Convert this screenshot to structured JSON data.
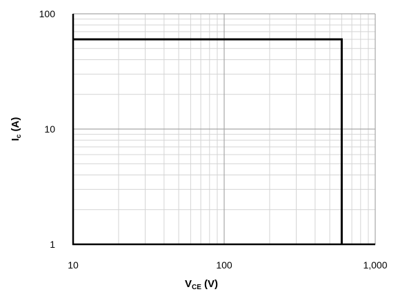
{
  "chart_data": {
    "type": "line",
    "x_scale": "log",
    "y_scale": "log",
    "xlim": [
      10,
      1000
    ],
    "ylim": [
      1,
      100
    ],
    "xlabel": {
      "main": "V",
      "sub": "CE",
      "unit": " (V)"
    },
    "ylabel": {
      "main": "I",
      "sub": "c",
      "unit": " (A)"
    },
    "x_ticks": [
      {
        "value": 10,
        "label": "10"
      },
      {
        "value": 100,
        "label": "100"
      },
      {
        "value": 1000,
        "label": "1,000"
      }
    ],
    "y_ticks": [
      {
        "value": 1,
        "label": "1"
      },
      {
        "value": 10,
        "label": "10"
      },
      {
        "value": 100,
        "label": "100"
      }
    ],
    "grid": true,
    "series": [
      {
        "color": "#000000",
        "points": [
          {
            "x": 10,
            "y": 60
          },
          {
            "x": 600,
            "y": 60
          },
          {
            "x": 600,
            "y": 1
          }
        ]
      }
    ],
    "colors": {
      "grid_major": "#a6a6a6",
      "grid_minor": "#d4d4d4",
      "axis": "#000000",
      "series": "#000000"
    }
  }
}
